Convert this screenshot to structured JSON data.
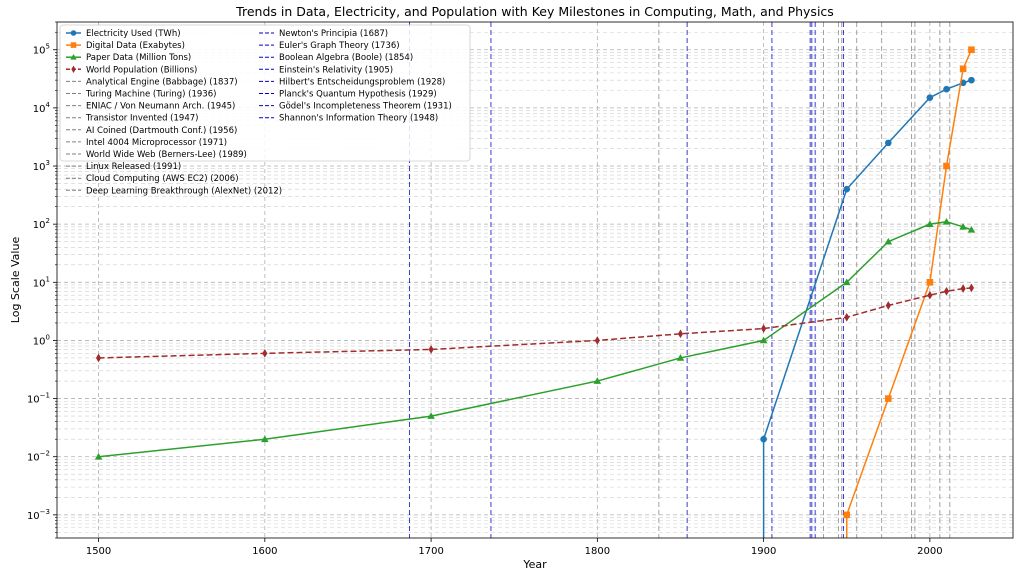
{
  "chart_data": {
    "type": "line",
    "title": "Trends in Data, Electricity, and Population with Key Milestones in Computing, Math, and Physics",
    "xlabel": "Year",
    "ylabel": "Log Scale Value",
    "xlim": [
      1475,
      2050
    ],
    "ylim": [
      0.0004,
      300000
    ],
    "yscale": "log",
    "grid": true,
    "legend_placement": "top-left",
    "x_ticks": [
      1500,
      1600,
      1700,
      1800,
      1900,
      2000
    ],
    "y_ticks": [
      {
        "value": 0.001,
        "base": "10",
        "exp": "−3"
      },
      {
        "value": 0.01,
        "base": "10",
        "exp": "−2"
      },
      {
        "value": 0.1,
        "base": "10",
        "exp": "−1"
      },
      {
        "value": 1,
        "base": "10",
        "exp": "0"
      },
      {
        "value": 10,
        "base": "10",
        "exp": "1"
      },
      {
        "value": 100,
        "base": "10",
        "exp": "2"
      },
      {
        "value": 1000,
        "base": "10",
        "exp": "3"
      },
      {
        "value": 10000,
        "base": "10",
        "exp": "4"
      },
      {
        "value": 100000,
        "base": "10",
        "exp": "5"
      }
    ],
    "series": [
      {
        "name": "Electricity Used (TWh)",
        "color": "#1f77b4",
        "marker": "circle",
        "dash": "solid",
        "x": [
          1900,
          1950,
          1975,
          2000,
          2010,
          2020,
          2025
        ],
        "y": [
          0.02,
          400,
          2500,
          15000,
          21000,
          27000,
          30000
        ],
        "drop_to_axis_from_x": 1900
      },
      {
        "name": "Digital Data (Exabytes)",
        "color": "#ff7f0e",
        "marker": "square",
        "dash": "solid",
        "x": [
          1950,
          1975,
          2000,
          2010,
          2020,
          2025
        ],
        "y": [
          0.001,
          0.1,
          10,
          1000,
          47000,
          100000
        ],
        "drop_to_axis_from_x": 1950
      },
      {
        "name": "Paper Data (Million Tons)",
        "color": "#2ca02c",
        "marker": "triangle",
        "dash": "solid",
        "x": [
          1500,
          1600,
          1700,
          1800,
          1850,
          1900,
          1950,
          1975,
          2000,
          2010,
          2020,
          2025
        ],
        "y": [
          0.01,
          0.02,
          0.05,
          0.2,
          0.5,
          1,
          10,
          50,
          100,
          110,
          90,
          80
        ]
      },
      {
        "name": "World Population (Billions)",
        "color": "#a02c2c",
        "marker": "diamond",
        "dash": "dashed",
        "x": [
          1500,
          1600,
          1700,
          1800,
          1850,
          1900,
          1950,
          1975,
          2000,
          2010,
          2020,
          2025
        ],
        "y": [
          0.5,
          0.6,
          0.7,
          1.0,
          1.3,
          1.6,
          2.5,
          4,
          6,
          7,
          7.8,
          8
        ]
      }
    ],
    "milestones_computing": [
      {
        "name": "Analytical Engine (Babbage) (1837)",
        "year": 1837
      },
      {
        "name": "Turing Machine (Turing) (1936)",
        "year": 1936
      },
      {
        "name": "ENIAC / Von Neumann Arch. (1945)",
        "year": 1945
      },
      {
        "name": "Transistor Invented (1947)",
        "year": 1947
      },
      {
        "name": "AI Coined (Dartmouth Conf.) (1956)",
        "year": 1956
      },
      {
        "name": "Intel 4004 Microprocessor (1971)",
        "year": 1971
      },
      {
        "name": "World Wide Web (Berners-Lee) (1989)",
        "year": 1989
      },
      {
        "name": "Linux Released (1991)",
        "year": 1991
      },
      {
        "name": "Cloud Computing (AWS EC2) (2006)",
        "year": 2006
      },
      {
        "name": "Deep Learning Breakthrough (AlexNet) (2012)",
        "year": 2012
      }
    ],
    "milestones_science": [
      {
        "name": "Newton's Principia (1687)",
        "year": 1687
      },
      {
        "name": "Euler's Graph Theory (1736)",
        "year": 1736
      },
      {
        "name": "Boolean Algebra (Boole) (1854)",
        "year": 1854
      },
      {
        "name": "Einstein's Relativity (1905)",
        "year": 1905
      },
      {
        "name": "Hilbert's Entscheidungsproblem (1928)",
        "year": 1928
      },
      {
        "name": "Planck's Quantum Hypothesis (1929)",
        "year": 1929
      },
      {
        "name": "Gödel's Incompleteness Theorem (1931)",
        "year": 1931
      },
      {
        "name": "Shannon's Information Theory (1948)",
        "year": 1948
      }
    ],
    "milestone_colors": {
      "computing": "#808080",
      "science": "#0000cc"
    }
  }
}
